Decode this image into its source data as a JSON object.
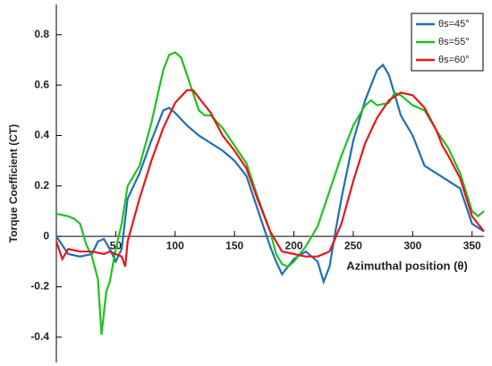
{
  "chart_data": {
    "type": "line",
    "x_label": "Azimuthal position (θ)",
    "y_label": "Torque Coefficient (CT)",
    "xlim": [
      0,
      360
    ],
    "xticks": [
      50,
      100,
      150,
      200,
      250,
      300,
      350
    ],
    "ylim": [
      -0.5,
      0.92
    ],
    "yticks": [
      -0.4,
      -0.2,
      0,
      0.2,
      0.4,
      0.6,
      0.8
    ],
    "legend": "upper right",
    "series": [
      {
        "name": "θs=45°",
        "color": "#1f6fb5",
        "x": [
          0,
          10,
          20,
          30,
          35,
          40,
          45,
          50,
          55,
          60,
          70,
          80,
          90,
          95,
          100,
          110,
          120,
          130,
          140,
          150,
          160,
          170,
          180,
          185,
          190,
          200,
          210,
          220,
          225,
          230,
          235,
          240,
          250,
          260,
          270,
          275,
          280,
          290,
          300,
          310,
          320,
          330,
          340,
          350,
          360
        ],
        "values": [
          0,
          -0.07,
          -0.08,
          -0.07,
          -0.02,
          -0.01,
          -0.05,
          -0.1,
          -0.05,
          0.15,
          0.25,
          0.38,
          0.5,
          0.51,
          0.49,
          0.44,
          0.4,
          0.37,
          0.34,
          0.3,
          0.24,
          0.1,
          -0.04,
          -0.1,
          -0.15,
          -0.09,
          -0.06,
          -0.1,
          -0.18,
          -0.12,
          0.02,
          0.15,
          0.38,
          0.54,
          0.66,
          0.68,
          0.64,
          0.48,
          0.4,
          0.28,
          0.25,
          0.22,
          0.19,
          0.05,
          0.02
        ]
      },
      {
        "name": "θs=55°",
        "color": "#1ec31e",
        "x": [
          0,
          10,
          15,
          20,
          25,
          30,
          35,
          38,
          42,
          45,
          50,
          55,
          60,
          70,
          80,
          90,
          95,
          100,
          105,
          110,
          120,
          125,
          130,
          140,
          150,
          160,
          170,
          180,
          185,
          190,
          195,
          200,
          210,
          220,
          230,
          240,
          250,
          260,
          265,
          270,
          280,
          285,
          290,
          300,
          310,
          320,
          330,
          340,
          350,
          355,
          360
        ],
        "values": [
          0.09,
          0.08,
          0.07,
          0.05,
          -0.03,
          -0.08,
          -0.17,
          -0.39,
          -0.22,
          -0.18,
          -0.05,
          0.05,
          0.2,
          0.28,
          0.45,
          0.66,
          0.72,
          0.73,
          0.71,
          0.64,
          0.5,
          0.48,
          0.48,
          0.43,
          0.36,
          0.29,
          0.15,
          0.02,
          -0.07,
          -0.11,
          -0.12,
          -0.1,
          -0.04,
          0.04,
          0.18,
          0.32,
          0.44,
          0.52,
          0.54,
          0.52,
          0.53,
          0.57,
          0.56,
          0.52,
          0.5,
          0.42,
          0.35,
          0.25,
          0.1,
          0.08,
          0.1
        ]
      },
      {
        "name": "θs=60°",
        "color": "#e8161a",
        "x": [
          0,
          5,
          10,
          20,
          30,
          40,
          45,
          50,
          55,
          58,
          60,
          70,
          80,
          90,
          100,
          110,
          115,
          120,
          130,
          140,
          150,
          160,
          170,
          180,
          190,
          200,
          210,
          220,
          230,
          240,
          250,
          260,
          270,
          280,
          290,
          300,
          310,
          320,
          325,
          330,
          340,
          350,
          360
        ],
        "values": [
          -0.02,
          -0.09,
          -0.05,
          -0.06,
          -0.06,
          -0.07,
          -0.06,
          -0.07,
          -0.08,
          -0.12,
          -0.02,
          0.15,
          0.3,
          0.43,
          0.53,
          0.58,
          0.58,
          0.55,
          0.49,
          0.4,
          0.34,
          0.27,
          0.14,
          0.02,
          -0.06,
          -0.07,
          -0.08,
          -0.08,
          -0.06,
          0.05,
          0.22,
          0.37,
          0.47,
          0.54,
          0.57,
          0.56,
          0.51,
          0.42,
          0.36,
          0.32,
          0.23,
          0.08,
          0.02
        ]
      }
    ]
  }
}
